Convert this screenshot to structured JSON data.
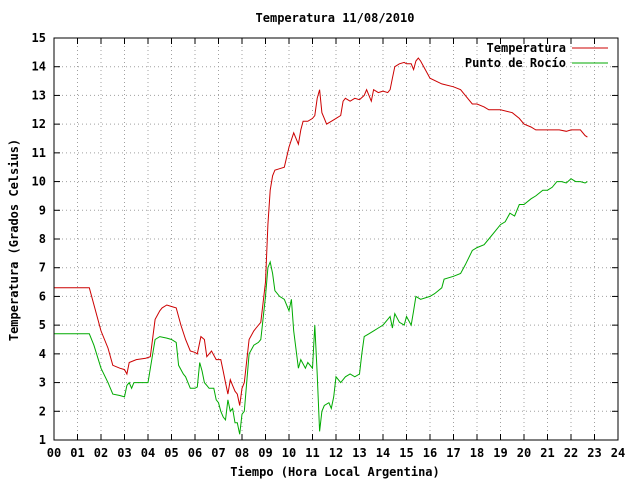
{
  "chart_data": {
    "type": "line",
    "title": "Temperatura 11/08/2010",
    "xlabel": "Tiempo (Hora Local Argentina)",
    "ylabel": "Temperatura (Grados Celsius)",
    "xlim": [
      0,
      24
    ],
    "ylim": [
      1,
      15
    ],
    "xticks": [
      "00",
      "01",
      "02",
      "03",
      "04",
      "05",
      "06",
      "07",
      "08",
      "09",
      "10",
      "11",
      "12",
      "13",
      "14",
      "15",
      "16",
      "17",
      "18",
      "19",
      "20",
      "21",
      "22",
      "23",
      "24"
    ],
    "yticks": [
      1,
      2,
      3,
      4,
      5,
      6,
      7,
      8,
      9,
      10,
      11,
      12,
      13,
      14,
      15
    ],
    "grid": true,
    "legend_position": "top-right",
    "series": [
      {
        "name": "Temperatura",
        "color": "#cc0000",
        "points": [
          [
            0.0,
            6.3
          ],
          [
            1.5,
            6.3
          ],
          [
            2.0,
            4.8
          ],
          [
            2.3,
            4.2
          ],
          [
            2.5,
            3.6
          ],
          [
            2.8,
            3.5
          ],
          [
            3.0,
            3.45
          ],
          [
            3.1,
            3.3
          ],
          [
            3.2,
            3.7
          ],
          [
            3.5,
            3.8
          ],
          [
            3.9,
            3.85
          ],
          [
            4.1,
            3.9
          ],
          [
            4.3,
            5.2
          ],
          [
            4.5,
            5.5
          ],
          [
            4.6,
            5.6
          ],
          [
            4.8,
            5.7
          ],
          [
            5.0,
            5.65
          ],
          [
            5.2,
            5.6
          ],
          [
            5.4,
            5.0
          ],
          [
            5.6,
            4.5
          ],
          [
            5.8,
            4.1
          ],
          [
            6.0,
            4.05
          ],
          [
            6.1,
            4.0
          ],
          [
            6.25,
            4.6
          ],
          [
            6.4,
            4.5
          ],
          [
            6.5,
            3.9
          ],
          [
            6.7,
            4.1
          ],
          [
            6.9,
            3.8
          ],
          [
            7.1,
            3.8
          ],
          [
            7.2,
            3.4
          ],
          [
            7.3,
            3.0
          ],
          [
            7.4,
            2.6
          ],
          [
            7.5,
            3.1
          ],
          [
            7.6,
            2.9
          ],
          [
            7.7,
            2.7
          ],
          [
            7.8,
            2.6
          ],
          [
            7.9,
            2.2
          ],
          [
            8.0,
            2.8
          ],
          [
            8.1,
            3.0
          ],
          [
            8.3,
            4.5
          ],
          [
            8.5,
            4.8
          ],
          [
            8.6,
            4.9
          ],
          [
            8.8,
            5.1
          ],
          [
            9.0,
            6.5
          ],
          [
            9.1,
            8.5
          ],
          [
            9.2,
            9.7
          ],
          [
            9.3,
            10.2
          ],
          [
            9.4,
            10.4
          ],
          [
            9.6,
            10.45
          ],
          [
            9.8,
            10.5
          ],
          [
            10.0,
            11.2
          ],
          [
            10.2,
            11.7
          ],
          [
            10.4,
            11.3
          ],
          [
            10.5,
            11.8
          ],
          [
            10.6,
            12.1
          ],
          [
            10.8,
            12.1
          ],
          [
            11.0,
            12.2
          ],
          [
            11.1,
            12.3
          ],
          [
            11.2,
            12.9
          ],
          [
            11.3,
            13.2
          ],
          [
            11.4,
            12.4
          ],
          [
            11.5,
            12.2
          ],
          [
            11.6,
            12.0
          ],
          [
            11.8,
            12.1
          ],
          [
            12.0,
            12.2
          ],
          [
            12.2,
            12.3
          ],
          [
            12.3,
            12.8
          ],
          [
            12.4,
            12.9
          ],
          [
            12.6,
            12.8
          ],
          [
            12.8,
            12.9
          ],
          [
            13.0,
            12.85
          ],
          [
            13.2,
            13.0
          ],
          [
            13.3,
            13.2
          ],
          [
            13.5,
            12.8
          ],
          [
            13.6,
            13.2
          ],
          [
            13.8,
            13.1
          ],
          [
            14.0,
            13.15
          ],
          [
            14.2,
            13.1
          ],
          [
            14.3,
            13.2
          ],
          [
            14.4,
            13.6
          ],
          [
            14.5,
            14.0
          ],
          [
            14.7,
            14.1
          ],
          [
            14.9,
            14.15
          ],
          [
            15.0,
            14.1
          ],
          [
            15.2,
            14.1
          ],
          [
            15.3,
            13.9
          ],
          [
            15.4,
            14.2
          ],
          [
            15.5,
            14.3
          ],
          [
            15.6,
            14.2
          ],
          [
            15.8,
            13.9
          ],
          [
            16.0,
            13.6
          ],
          [
            16.5,
            13.4
          ],
          [
            17.0,
            13.3
          ],
          [
            17.3,
            13.2
          ],
          [
            17.5,
            13.0
          ],
          [
            17.8,
            12.7
          ],
          [
            18.0,
            12.7
          ],
          [
            18.3,
            12.6
          ],
          [
            18.5,
            12.5
          ],
          [
            19.0,
            12.5
          ],
          [
            19.5,
            12.4
          ],
          [
            19.8,
            12.2
          ],
          [
            20.0,
            12.0
          ],
          [
            20.3,
            11.9
          ],
          [
            20.5,
            11.8
          ],
          [
            21.0,
            11.8
          ],
          [
            21.5,
            11.8
          ],
          [
            21.8,
            11.75
          ],
          [
            22.0,
            11.8
          ],
          [
            22.4,
            11.8
          ],
          [
            22.6,
            11.6
          ],
          [
            22.7,
            11.55
          ]
        ]
      },
      {
        "name": "Punto de Rocío",
        "color": "#00aa00",
        "points": [
          [
            0.0,
            4.7
          ],
          [
            1.5,
            4.7
          ],
          [
            1.7,
            4.3
          ],
          [
            2.0,
            3.5
          ],
          [
            2.3,
            3.0
          ],
          [
            2.5,
            2.6
          ],
          [
            2.8,
            2.55
          ],
          [
            3.0,
            2.5
          ],
          [
            3.1,
            2.9
          ],
          [
            3.2,
            3.0
          ],
          [
            3.3,
            2.8
          ],
          [
            3.4,
            3.0
          ],
          [
            3.6,
            3.0
          ],
          [
            3.8,
            3.0
          ],
          [
            4.0,
            3.0
          ],
          [
            4.2,
            4.0
          ],
          [
            4.3,
            4.5
          ],
          [
            4.5,
            4.6
          ],
          [
            4.8,
            4.55
          ],
          [
            5.0,
            4.5
          ],
          [
            5.2,
            4.4
          ],
          [
            5.3,
            3.6
          ],
          [
            5.5,
            3.3
          ],
          [
            5.6,
            3.2
          ],
          [
            5.8,
            2.8
          ],
          [
            6.0,
            2.8
          ],
          [
            6.1,
            2.85
          ],
          [
            6.2,
            3.7
          ],
          [
            6.3,
            3.4
          ],
          [
            6.4,
            3.0
          ],
          [
            6.5,
            2.9
          ],
          [
            6.6,
            2.8
          ],
          [
            6.8,
            2.8
          ],
          [
            6.9,
            2.4
          ],
          [
            7.0,
            2.3
          ],
          [
            7.1,
            2.0
          ],
          [
            7.2,
            1.8
          ],
          [
            7.3,
            1.7
          ],
          [
            7.4,
            2.4
          ],
          [
            7.5,
            2.0
          ],
          [
            7.6,
            2.1
          ],
          [
            7.7,
            1.6
          ],
          [
            7.8,
            1.6
          ],
          [
            7.9,
            1.2
          ],
          [
            8.0,
            1.9
          ],
          [
            8.1,
            2.0
          ],
          [
            8.3,
            4.0
          ],
          [
            8.5,
            4.3
          ],
          [
            8.7,
            4.4
          ],
          [
            8.8,
            4.5
          ],
          [
            9.0,
            6.0
          ],
          [
            9.1,
            7.0
          ],
          [
            9.2,
            7.2
          ],
          [
            9.3,
            6.8
          ],
          [
            9.4,
            6.2
          ],
          [
            9.6,
            6.0
          ],
          [
            9.8,
            5.9
          ],
          [
            10.0,
            5.5
          ],
          [
            10.1,
            5.9
          ],
          [
            10.2,
            4.8
          ],
          [
            10.4,
            3.5
          ],
          [
            10.5,
            3.8
          ],
          [
            10.7,
            3.5
          ],
          [
            10.8,
            3.7
          ],
          [
            11.0,
            3.5
          ],
          [
            11.1,
            5.0
          ],
          [
            11.2,
            3.3
          ],
          [
            11.3,
            1.3
          ],
          [
            11.4,
            2.0
          ],
          [
            11.5,
            2.2
          ],
          [
            11.7,
            2.3
          ],
          [
            11.8,
            2.1
          ],
          [
            11.9,
            2.5
          ],
          [
            12.0,
            3.2
          ],
          [
            12.2,
            3.0
          ],
          [
            12.4,
            3.2
          ],
          [
            12.6,
            3.3
          ],
          [
            12.8,
            3.2
          ],
          [
            13.0,
            3.3
          ],
          [
            13.1,
            4.0
          ],
          [
            13.2,
            4.6
          ],
          [
            13.4,
            4.7
          ],
          [
            13.6,
            4.8
          ],
          [
            13.8,
            4.9
          ],
          [
            14.0,
            5.0
          ],
          [
            14.2,
            5.2
          ],
          [
            14.3,
            5.3
          ],
          [
            14.4,
            4.9
          ],
          [
            14.5,
            5.4
          ],
          [
            14.7,
            5.1
          ],
          [
            14.9,
            5.0
          ],
          [
            15.0,
            5.3
          ],
          [
            15.2,
            5.0
          ],
          [
            15.3,
            5.5
          ],
          [
            15.4,
            6.0
          ],
          [
            15.6,
            5.9
          ],
          [
            16.0,
            6.0
          ],
          [
            16.2,
            6.1
          ],
          [
            16.5,
            6.3
          ],
          [
            16.6,
            6.6
          ],
          [
            17.0,
            6.7
          ],
          [
            17.3,
            6.8
          ],
          [
            17.5,
            7.1
          ],
          [
            17.8,
            7.6
          ],
          [
            18.0,
            7.7
          ],
          [
            18.3,
            7.8
          ],
          [
            18.5,
            8.0
          ],
          [
            18.8,
            8.3
          ],
          [
            19.0,
            8.5
          ],
          [
            19.2,
            8.6
          ],
          [
            19.4,
            8.9
          ],
          [
            19.6,
            8.8
          ],
          [
            19.8,
            9.2
          ],
          [
            20.0,
            9.2
          ],
          [
            20.3,
            9.4
          ],
          [
            20.5,
            9.5
          ],
          [
            20.8,
            9.7
          ],
          [
            21.0,
            9.7
          ],
          [
            21.2,
            9.8
          ],
          [
            21.4,
            10.0
          ],
          [
            21.6,
            10.0
          ],
          [
            21.8,
            9.95
          ],
          [
            22.0,
            10.1
          ],
          [
            22.2,
            10.0
          ],
          [
            22.4,
            10.0
          ],
          [
            22.6,
            9.95
          ],
          [
            22.7,
            10.0
          ]
        ]
      }
    ]
  }
}
